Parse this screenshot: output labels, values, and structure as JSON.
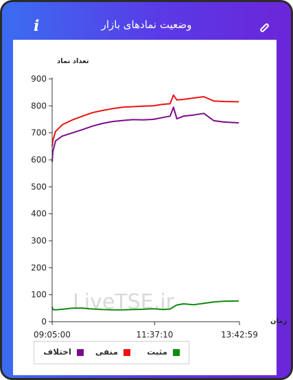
{
  "header": {
    "title": "وضعیت نمادهای بازار",
    "info_icon": "info-icon",
    "link_icon": "link-icon"
  },
  "colors": {
    "positive": "#108a10",
    "negative": "#ee1111",
    "difference": "#7a0a8a",
    "gradient_start": "#3a6df0",
    "gradient_end": "#6b25d8"
  },
  "watermark": "LiveTSE.ir",
  "chart_data": {
    "type": "line",
    "ylabel": "تعداد نماد",
    "xlabel": "زمان",
    "ylim": [
      0,
      900
    ],
    "yticks": [
      0,
      100,
      200,
      300,
      400,
      500,
      600,
      700,
      800,
      900
    ],
    "xticks": [
      "09:05:00",
      "11:37:10",
      "13:42:59"
    ],
    "x": [
      "09:05",
      "09:06",
      "09:10",
      "09:20",
      "09:35",
      "09:50",
      "10:05",
      "10:20",
      "10:35",
      "10:50",
      "11:05",
      "11:20",
      "11:35",
      "11:50",
      "12:00",
      "12:05",
      "12:10",
      "12:20",
      "12:35",
      "12:50",
      "13:05",
      "13:20",
      "13:42"
    ],
    "series": [
      {
        "name": "منفی",
        "color": "#ee1111",
        "values": [
          650,
          672,
          705,
          730,
          748,
          762,
          775,
          783,
          790,
          795,
          797,
          799,
          800,
          806,
          808,
          840,
          822,
          824,
          829,
          834,
          818,
          816,
          815
        ]
      },
      {
        "name": "اختلاف",
        "color": "#7a0a8a",
        "values": [
          592,
          630,
          670,
          688,
          700,
          712,
          725,
          735,
          742,
          746,
          749,
          748,
          750,
          757,
          762,
          795,
          752,
          762,
          766,
          772,
          745,
          740,
          737
        ]
      },
      {
        "name": "مثبت",
        "color": "#108a10",
        "values": [
          55,
          45,
          44,
          46,
          50,
          50,
          47,
          45,
          44,
          44,
          45,
          46,
          48,
          45,
          47,
          55,
          62,
          66,
          63,
          68,
          73,
          76,
          77
        ]
      }
    ],
    "legend": [
      {
        "label": "مثبت",
        "color": "#108a10"
      },
      {
        "label": "منفی",
        "color": "#ee1111"
      },
      {
        "label": "اختلاف",
        "color": "#7a0a8a"
      }
    ],
    "legend_position": "bottom"
  }
}
